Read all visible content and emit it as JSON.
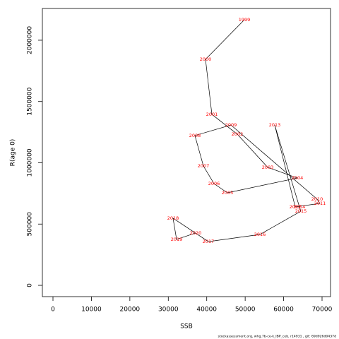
{
  "chart_data": {
    "type": "line",
    "x_label": "SSB",
    "y_label": "R(age 0)",
    "footer": "stockassessment.org, whg.7b-ce-k_IBP_ceb, r14931 , git: 69d926d0437d",
    "labels": [
      "1999",
      "2000",
      "2001",
      "2002",
      "2003",
      "2004",
      "2005",
      "2006",
      "2007",
      "2008",
      "2009",
      "2010",
      "2011",
      "2012",
      "2013",
      "2014",
      "2015",
      "2016",
      "2017",
      "2018",
      "2019",
      "2020"
    ],
    "x": [
      49790,
      39685,
      41339,
      47953,
      55853,
      63570,
      45381,
      41890,
      39134,
      36929,
      46299,
      68714,
      69449,
      63018,
      57690,
      64121,
      64488,
      53832,
      40420,
      31234,
      32152,
      37113
    ],
    "values": [
      2167000,
      1844000,
      1395000,
      1233000,
      963000,
      876000,
      755000,
      830000,
      974000,
      1222000,
      1308000,
      703000,
      669000,
      640000,
      1308000,
      640000,
      605000,
      415000,
      357000,
      548000,
      375000,
      427000
    ],
    "line_color": "#000000",
    "label_color": "#ff0000",
    "xlim": [
      -2756,
      72205
    ],
    "ylim": [
      -92000,
      2259000
    ],
    "xticks": [
      0,
      10000,
      20000,
      30000,
      40000,
      50000,
      60000,
      70000
    ],
    "yticks": [
      0,
      500000,
      1000000,
      1500000,
      2000000
    ]
  }
}
